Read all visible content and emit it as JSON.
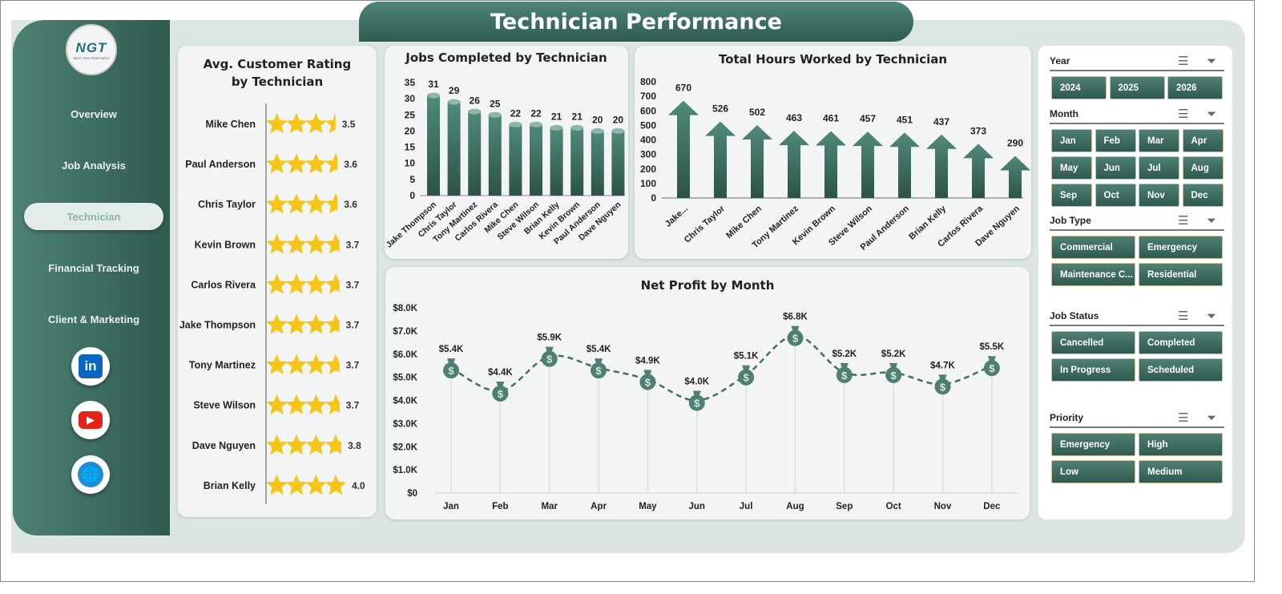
{
  "title": "Technician Performance",
  "logo": {
    "text": "NGT",
    "subtext": "NEXT GEN TEMPLATES"
  },
  "nav": [
    {
      "label": "Overview"
    },
    {
      "label": "Job Analysis"
    },
    {
      "label": "Technician",
      "active": true
    },
    {
      "label": "Financial Tracking"
    },
    {
      "label": "Client & Marketing"
    }
  ],
  "social": [
    {
      "icon": "linkedin-icon",
      "label": "in",
      "color": "#0a66c2"
    },
    {
      "icon": "youtube-icon",
      "label": "▶",
      "color": "#e62117"
    },
    {
      "icon": "globe-icon",
      "label": "🌐",
      "color": "#1a8fd6"
    }
  ],
  "colors": {
    "accent": "#3d6e62",
    "star": "#f5c518"
  },
  "chart_data": [
    {
      "type": "bar",
      "title": "Avg. Customer Rating by Technician",
      "categories": [
        "Mike Chen",
        "Paul Anderson",
        "Chris Taylor",
        "Kevin Brown",
        "Carlos Rivera",
        "Jake Thompson",
        "Tony Martinez",
        "Steve Wilson",
        "Dave Nguyen",
        "Brian Kelly"
      ],
      "values": [
        3.5,
        3.6,
        3.6,
        3.7,
        3.7,
        3.7,
        3.7,
        3.7,
        3.8,
        4.0
      ],
      "labels": [
        "3.5",
        "3.6",
        "3.6",
        "3.7",
        "3.7",
        "3.7",
        "3.7",
        "3.7",
        "3.8",
        "4.0"
      ],
      "orientation": "horizontal",
      "marker": "star"
    },
    {
      "type": "bar",
      "title": "Jobs Completed by Technician",
      "categories": [
        "Jake Thompson",
        "Chris Taylor",
        "Tony Martinez",
        "Carlos Rivera",
        "Mike Chen",
        "Steve Wilson",
        "Brian Kelly",
        "Kevin Brown",
        "Paul Anderson",
        "Dave Nguyen"
      ],
      "values": [
        31,
        29,
        26,
        25,
        22,
        22,
        21,
        21,
        20,
        20
      ],
      "ylim": [
        0,
        35
      ],
      "yticks": [
        "0",
        "5",
        "10",
        "15",
        "20",
        "25",
        "30",
        "35"
      ]
    },
    {
      "type": "bar",
      "title": "Total Hours Worked by Technician",
      "categories": [
        "Jake...",
        "Chris Taylor",
        "Mike Chen",
        "Tony Martinez",
        "Kevin Brown",
        "Steve Wilson",
        "Paul Anderson",
        "Brian Kelly",
        "Carlos Rivera",
        "Dave Nguyen"
      ],
      "values": [
        670,
        526,
        502,
        463,
        461,
        457,
        451,
        437,
        373,
        290
      ],
      "ylim": [
        0,
        800
      ],
      "yticks": [
        "0",
        "100",
        "200",
        "300",
        "400",
        "500",
        "600",
        "700",
        "800"
      ],
      "marker": "arrow"
    },
    {
      "type": "line",
      "title": "Net Profit by Month",
      "categories": [
        "Jan",
        "Feb",
        "Mar",
        "Apr",
        "May",
        "Jun",
        "Jul",
        "Aug",
        "Sep",
        "Oct",
        "Nov",
        "Dec"
      ],
      "values": [
        5400,
        4400,
        5900,
        5400,
        4900,
        4000,
        5100,
        6800,
        5200,
        5200,
        4700,
        5500
      ],
      "labels": [
        "$5.4K",
        "$4.4K",
        "$5.9K",
        "$5.4K",
        "$4.9K",
        "$4.0K",
        "$5.1K",
        "$6.8K",
        "$5.2K",
        "$5.2K",
        "$4.7K",
        "$5.5K"
      ],
      "ylim": [
        0,
        8000
      ],
      "yticks": [
        "$0",
        "$1.0K",
        "$2.0K",
        "$3.0K",
        "$4.0K",
        "$5.0K",
        "$6.0K",
        "$7.0K",
        "$8.0K"
      ],
      "marker": "money-bag",
      "line": "dashed"
    }
  ],
  "slicers": [
    {
      "title": "Year",
      "items": [
        "2024",
        "2025",
        "2026"
      ]
    },
    {
      "title": "Month",
      "items": [
        "Jan",
        "Feb",
        "Mar",
        "Apr",
        "May",
        "Jun",
        "Jul",
        "Aug",
        "Sep",
        "Oct",
        "Nov",
        "Dec"
      ]
    },
    {
      "title": "Job Type",
      "items": [
        "Commercial",
        "Emergency",
        "Maintenance C...",
        "Residential"
      ]
    },
    {
      "title": "Job Status",
      "items": [
        "Cancelled",
        "Completed",
        "In Progress",
        "Scheduled"
      ]
    },
    {
      "title": "Priority",
      "items": [
        "Emergency",
        "High",
        "Low",
        "Medium"
      ]
    }
  ]
}
